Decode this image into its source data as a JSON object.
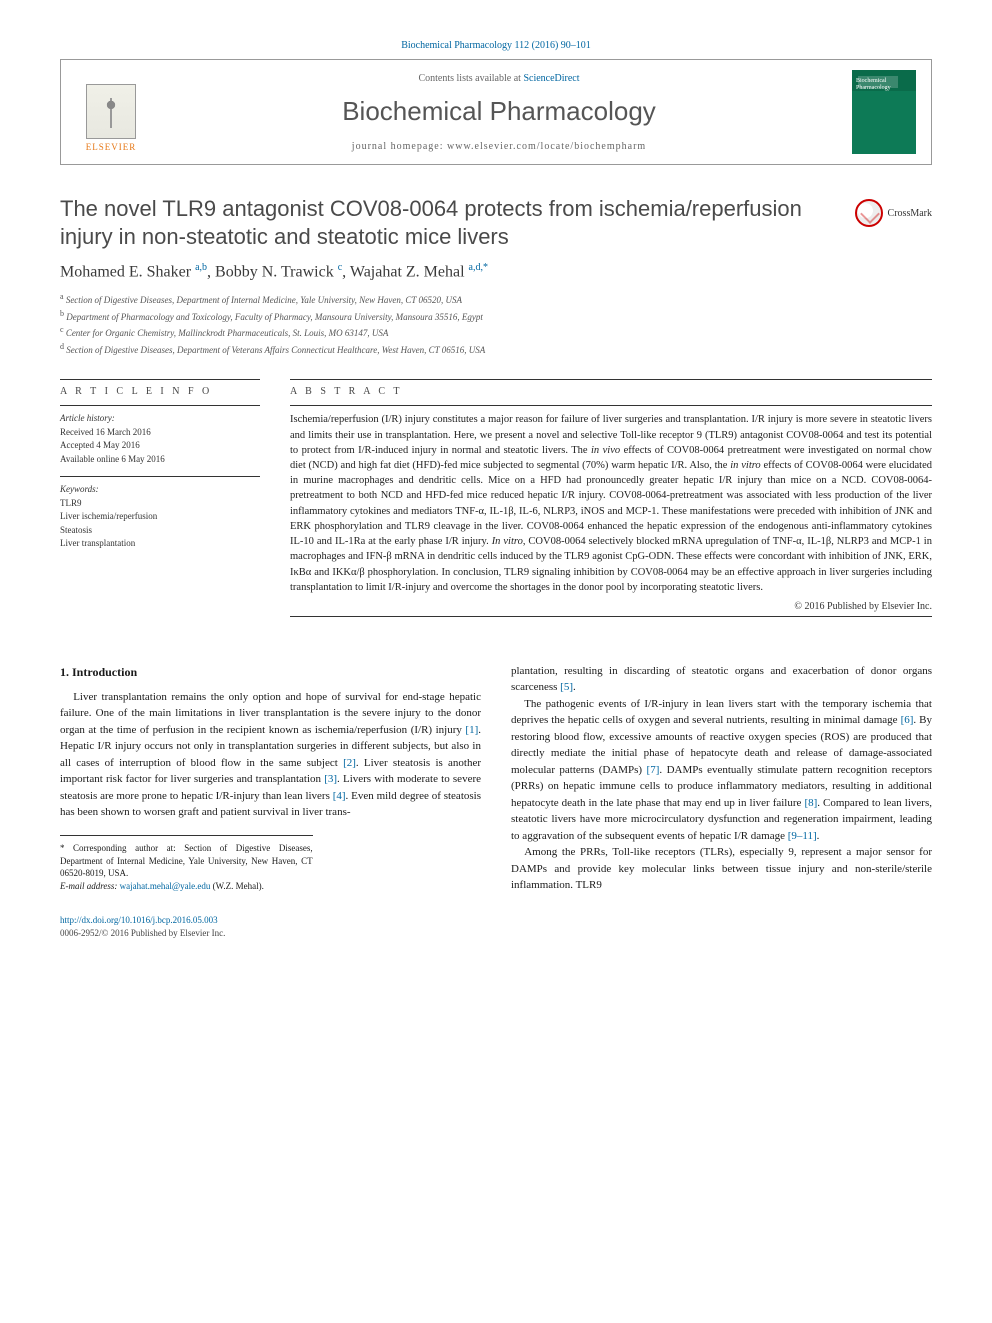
{
  "top_reference": "Biochemical Pharmacology 112 (2016) 90–101",
  "header": {
    "contents_prefix": "Contents lists available at ",
    "contents_link": "ScienceDirect",
    "journal_name": "Biochemical Pharmacology",
    "homepage_prefix": "journal homepage: ",
    "homepage_url": "www.elsevier.com/locate/biochempharm",
    "publisher_logo_text": "ELSEVIER",
    "cover_title": "Biochemical Pharmacology"
  },
  "crossmark_label": "CrossMark",
  "article_title": "The novel TLR9 antagonist COV08-0064 protects from ischemia/reperfusion injury in non-steatotic and steatotic mice livers",
  "authors_html": "Mohamed E. Shaker <sup>a,b</sup>, Bobby N. Trawick <sup>c</sup>, Wajahat Z. Mehal <sup>a,d,*</sup>",
  "affiliations": [
    "a Section of Digestive Diseases, Department of Internal Medicine, Yale University, New Haven, CT 06520, USA",
    "b Department of Pharmacology and Toxicology, Faculty of Pharmacy, Mansoura University, Mansoura 35516, Egypt",
    "c Center for Organic Chemistry, Mallinckrodt Pharmaceuticals, St. Louis, MO 63147, USA",
    "d Section of Digestive Diseases, Department of Veterans Affairs Connecticut Healthcare, West Haven, CT 06516, USA"
  ],
  "info": {
    "head": "A R T I C L E   I N F O",
    "history_label": "Article history:",
    "history": [
      "Received 16 March 2016",
      "Accepted 4 May 2016",
      "Available online 6 May 2016"
    ],
    "keywords_label": "Keywords:",
    "keywords": [
      "TLR9",
      "Liver ischemia/reperfusion",
      "Steatosis",
      "Liver transplantation"
    ]
  },
  "abstract": {
    "head": "A B S T R A C T",
    "text": "Ischemia/reperfusion (I/R) injury constitutes a major reason for failure of liver surgeries and transplantation. I/R injury is more severe in steatotic livers and limits their use in transplantation. Here, we present a novel and selective Toll-like receptor 9 (TLR9) antagonist COV08-0064 and test its potential to protect from I/R-induced injury in normal and steatotic livers. The in vivo effects of COV08-0064 pretreatment were investigated on normal chow diet (NCD) and high fat diet (HFD)-fed mice subjected to segmental (70%) warm hepatic I/R. Also, the in vitro effects of COV08-0064 were elucidated in murine macrophages and dendritic cells. Mice on a HFD had pronouncedly greater hepatic I/R injury than mice on a NCD. COV08-0064-pretreatment to both NCD and HFD-fed mice reduced hepatic I/R injury. COV08-0064-pretreatment was associated with less production of the liver inflammatory cytokines and mediators TNF-α, IL-1β, IL-6, NLRP3, iNOS and MCP-1. These manifestations were preceded with inhibition of JNK and ERK phosphorylation and TLR9 cleavage in the liver. COV08-0064 enhanced the hepatic expression of the endogenous anti-inflammatory cytokines IL-10 and IL-1Ra at the early phase I/R injury. In vitro, COV08-0064 selectively blocked mRNA upregulation of TNF-α, IL-1β, NLRP3 and MCP-1 in macrophages and IFN-β mRNA in dendritic cells induced by the TLR9 agonist CpG-ODN. These effects were concordant with inhibition of JNK, ERK, IκBα and IKKα/β phosphorylation. In conclusion, TLR9 signaling inhibition by COV08-0064 may be an effective approach in liver surgeries including transplantation to limit I/R-injury and overcome the shortages in the donor pool by incorporating steatotic livers.",
    "copyright": "© 2016 Published by Elsevier Inc."
  },
  "intro_head": "1. Introduction",
  "col1": [
    "Liver transplantation remains the only option and hope of survival for end-stage hepatic failure. One of the main limitations in liver transplantation is the severe injury to the donor organ at the time of perfusion in the recipient known as ischemia/reperfusion (I/R) injury [1]. Hepatic I/R injury occurs not only in transplantation surgeries in different subjects, but also in all cases of interruption of blood flow in the same subject [2]. Liver steatosis is another important risk factor for liver surgeries and transplantation [3]. Livers with moderate to severe steatosis are more prone to hepatic I/R-injury than lean livers [4]. Even mild degree of steatosis has been shown to worsen graft and patient survival in liver trans-"
  ],
  "col2": [
    "plantation, resulting in discarding of steatotic organs and exacerbation of donor organs scarceness [5].",
    "The pathogenic events of I/R-injury in lean livers start with the temporary ischemia that deprives the hepatic cells of oxygen and several nutrients, resulting in minimal damage [6]. By restoring blood flow, excessive amounts of reactive oxygen species (ROS) are produced that directly mediate the initial phase of hepatocyte death and release of damage-associated molecular patterns (DAMPs) [7]. DAMPs eventually stimulate pattern recognition receptors (PRRs) on hepatic immune cells to produce inflammatory mediators, resulting in additional hepatocyte death in the late phase that may end up in liver failure [8]. Compared to lean livers, steatotic livers have more microcirculatory dysfunction and regeneration impairment, leading to aggravation of the subsequent events of hepatic I/R damage [9–11].",
    "Among the PRRs, Toll-like receptors (TLRs), especially 9, represent a major sensor for DAMPs and provide key molecular links between tissue injury and non-sterile/sterile inflammation. TLR9"
  ],
  "footnote": {
    "corresponding": "* Corresponding author at: Section of Digestive Diseases, Department of Internal Medicine, Yale University, New Haven, CT 06520-8019, USA.",
    "email_label": "E-mail address: ",
    "email": "wajahat.mehal@yale.edu",
    "email_suffix": " (W.Z. Mehal)."
  },
  "bottom": {
    "doi": "http://dx.doi.org/10.1016/j.bcp.2016.05.003",
    "issn_line": "0006-2952/© 2016 Published by Elsevier Inc."
  },
  "colors": {
    "link": "#0066a1",
    "orange": "#e67817",
    "text": "#1a1a1a"
  }
}
